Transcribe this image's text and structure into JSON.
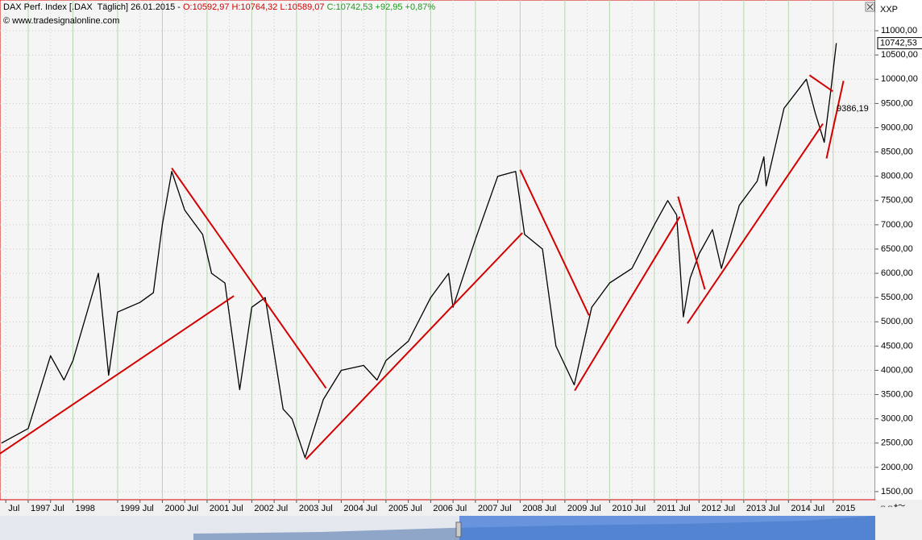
{
  "chart_data": {
    "type": "line",
    "title": "DAX Perf. Index [.DAX  Täglich] 26.01.2015 -",
    "ohlc": "O:10592,97 H:10764,32 L:10589,07",
    "change": "C:10742,53 +92,95 +0,87%",
    "source": "© www.tradesignalonline.com",
    "axis_label": "XXP",
    "color": "#000000",
    "x": [
      1996.4,
      1997.0,
      1997.5,
      1997.8,
      1998.0,
      1998.57,
      1998.8,
      1999.0,
      1999.5,
      1999.8,
      2000.0,
      2000.21,
      2000.5,
      2000.9,
      2001.1,
      2001.4,
      2001.73,
      2002.0,
      2002.3,
      2002.7,
      2002.9,
      2003.19,
      2003.6,
      2004.0,
      2004.5,
      2004.8,
      2005.0,
      2005.5,
      2006.0,
      2006.4,
      2006.5,
      2007.0,
      2007.5,
      2007.9,
      2008.1,
      2008.5,
      2008.8,
      2009.21,
      2009.6,
      2010.0,
      2010.5,
      2011.0,
      2011.3,
      2011.5,
      2011.65,
      2011.8,
      2012.0,
      2012.3,
      2012.5,
      2012.9,
      2013.3,
      2013.45,
      2013.5,
      2013.9,
      2014.4,
      2014.6,
      2014.8,
      2014.95,
      2015.07
    ],
    "values": [
      2500,
      2800,
      4300,
      3800,
      4200,
      6000,
      3900,
      5200,
      5400,
      5600,
      7000,
      8100,
      7300,
      6800,
      6000,
      5800,
      3600,
      5300,
      5500,
      3200,
      3000,
      2200,
      3400,
      4000,
      4100,
      3800,
      4200,
      4600,
      5500,
      6000,
      5300,
      6700,
      8000,
      8100,
      6800,
      6500,
      4500,
      3700,
      5300,
      5800,
      6100,
      7000,
      7500,
      7200,
      5100,
      5900,
      6400,
      6900,
      6100,
      7400,
      7900,
      8400,
      7800,
      9400,
      10000,
      9300,
      8700,
      9800,
      10742.53
    ],
    "trendline_color": "#d40000",
    "trendlines": [
      {
        "x": [
          1996.37,
          2001.6
        ],
        "values": [
          2283,
          5533
        ]
      },
      {
        "x": [
          2000.21,
          2003.66
        ],
        "values": [
          8167,
          3633
        ]
      },
      {
        "x": [
          2003.21,
          2008.05
        ],
        "values": [
          2167,
          6833
        ]
      },
      {
        "x": [
          2008.0,
          2009.54
        ],
        "values": [
          8133,
          5133
        ]
      },
      {
        "x": [
          2009.22,
          2011.57
        ],
        "values": [
          3583,
          7167
        ]
      },
      {
        "x": [
          2011.53,
          2012.13
        ],
        "values": [
          7583,
          5667
        ]
      },
      {
        "x": [
          2011.74,
          2014.77
        ],
        "values": [
          4967,
          9083
        ]
      },
      {
        "x": [
          2014.47,
          2014.99
        ],
        "values": [
          10083,
          9750
        ]
      },
      {
        "x": [
          2014.85,
          2015.23
        ],
        "values": [
          8367,
          9967
        ]
      }
    ],
    "last_price": {
      "value": 10742.53,
      "label": "10742,53"
    },
    "annotation": {
      "value": 9386.19,
      "label": "9386,19"
    },
    "xlim": [
      1996.37,
      2015.94
    ],
    "ylim": [
      1333,
      11633
    ],
    "grid": true,
    "yticks": [
      {
        "value": 1500,
        "label": "1500,00"
      },
      {
        "value": 2000,
        "label": "2000,00"
      },
      {
        "value": 2500,
        "label": "2500,00"
      },
      {
        "value": 3000,
        "label": "3000,00"
      },
      {
        "value": 3500,
        "label": "3500,00"
      },
      {
        "value": 4000,
        "label": "4000,00"
      },
      {
        "value": 4500,
        "label": "4500,00"
      },
      {
        "value": 5000,
        "label": "5000,00"
      },
      {
        "value": 5500,
        "label": "5500,00"
      },
      {
        "value": 6000,
        "label": "6000,00"
      },
      {
        "value": 6500,
        "label": "6500,00"
      },
      {
        "value": 7000,
        "label": "7000,00"
      },
      {
        "value": 7500,
        "label": "7500,00"
      },
      {
        "value": 8000,
        "label": "8000,00"
      },
      {
        "value": 8500,
        "label": "8500,00"
      },
      {
        "value": 9000,
        "label": "9000,00"
      },
      {
        "value": 9500,
        "label": "9500,00"
      },
      {
        "value": 10000,
        "label": "10000,00"
      },
      {
        "value": 10500,
        "label": "10500,00"
      },
      {
        "value": 11000,
        "label": "11000,00"
      }
    ],
    "xticks": [
      {
        "value": 1996.5,
        "label": "Jul"
      },
      1997,
      {
        "value": 1997.5,
        "label": "Jul"
      },
      1998,
      1999,
      {
        "value": 1999.5,
        "label": "Jul"
      },
      2000,
      {
        "value": 2000.5,
        "label": "Jul"
      },
      2001,
      {
        "value": 2001.5,
        "label": "Jul"
      },
      2002,
      {
        "value": 2002.5,
        "label": "Jul"
      },
      2003,
      {
        "value": 2003.5,
        "label": "Jul"
      },
      2004,
      {
        "value": 2004.5,
        "label": "Jul"
      },
      2005,
      {
        "value": 2005.5,
        "label": "Jul"
      },
      2006,
      {
        "value": 2006.5,
        "label": "Jul"
      },
      2007,
      {
        "value": 2007.5,
        "label": "Jul"
      },
      2008,
      {
        "value": 2008.5,
        "label": "Jul"
      },
      2009,
      {
        "value": 2009.5,
        "label": "Jul"
      },
      2010,
      {
        "value": 2010.5,
        "label": "Jul"
      },
      2011,
      {
        "value": 2011.5,
        "label": "Jul"
      },
      2012,
      {
        "value": 2012.5,
        "label": "Jul"
      },
      2013,
      {
        "value": 2013.5,
        "label": "Jul"
      },
      2014,
      {
        "value": 2014.5,
        "label": "Jul"
      },
      2015
    ]
  }
}
